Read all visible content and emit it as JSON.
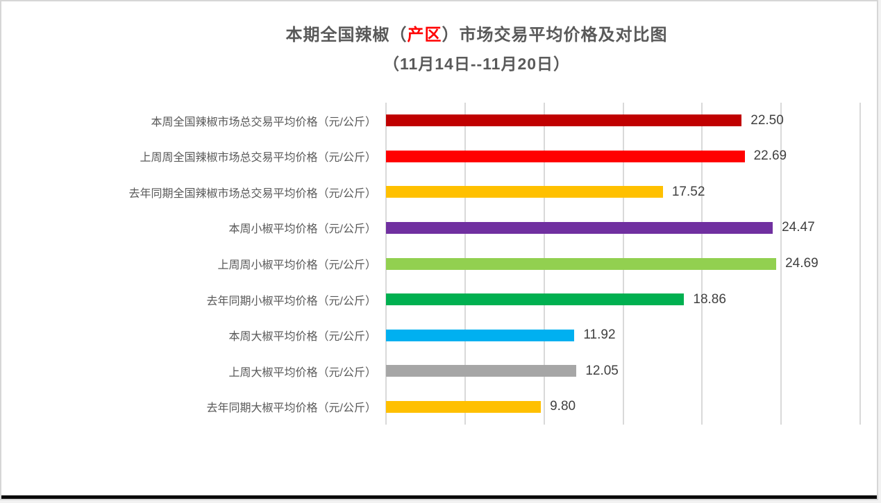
{
  "title": {
    "prefix": "本期全国辣椒（",
    "highlight": "产区",
    "suffix": "）市场交易平均价格及对比图",
    "subtitle": "（11月14日--11月20日）",
    "highlight_color": "#ff0000",
    "text_color": "#595959"
  },
  "chart_data": {
    "type": "bar",
    "orientation": "horizontal",
    "title": "本期全国辣椒（产区）市场交易平均价格及对比图（11月14日--11月20日）",
    "categories": [
      "本周全国辣椒市场总交易平均价格（元/公斤）",
      "上周周全国辣椒市场总交易平均价格（元/公斤）",
      "去年同期全国辣椒市场总交易平均价格（元/公斤）",
      "本周小椒平均价格（元/公斤）",
      "上周周小椒平均价格（元/公斤）",
      "去年同期小椒平均价格（元/公斤）",
      "本周大椒平均价格（元/公斤）",
      "上周大椒平均价格（元/公斤）",
      "去年同期大椒平均价格（元/公斤）"
    ],
    "values": [
      22.5,
      22.69,
      17.52,
      24.47,
      24.69,
      18.86,
      11.92,
      12.05,
      9.8
    ],
    "value_labels": [
      "22.50",
      "22.69",
      "17.52",
      "24.47",
      "24.69",
      "18.86",
      "11.92",
      "12.05",
      "9.80"
    ],
    "bar_colors": [
      "#c00000",
      "#ff0000",
      "#ffc000",
      "#7030a0",
      "#92d050",
      "#00b050",
      "#00b0f0",
      "#a6a6a6",
      "#ffc000"
    ],
    "xlabel": "",
    "ylabel": "",
    "xlim": [
      0,
      30
    ],
    "gridline_interval": 5,
    "grid": true,
    "gridline_color": "#d9d9d9",
    "legend": "none"
  }
}
